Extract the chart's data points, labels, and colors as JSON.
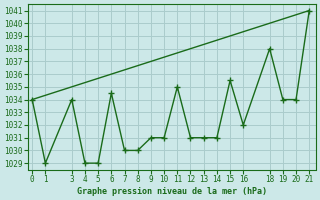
{
  "title": "Graphe pression niveau de la mer (hPa)",
  "bg_color": "#cce8e8",
  "grid_color": "#aacccc",
  "line_color": "#1a6b1a",
  "trend_color": "#1a6b1a",
  "xlim": [
    -0.3,
    21.5
  ],
  "ylim": [
    1028.5,
    1041.5
  ],
  "yticks": [
    1029,
    1030,
    1031,
    1032,
    1033,
    1034,
    1035,
    1036,
    1037,
    1038,
    1039,
    1040,
    1041
  ],
  "xticks": [
    0,
    1,
    3,
    4,
    5,
    6,
    7,
    8,
    9,
    10,
    11,
    12,
    13,
    14,
    15,
    16,
    18,
    19,
    20,
    21
  ],
  "data_x": [
    0,
    1,
    3,
    4,
    5,
    6,
    7,
    8,
    9,
    10,
    11,
    12,
    13,
    14,
    15,
    16,
    18,
    19,
    20,
    21
  ],
  "data_y": [
    1034,
    1029,
    1034,
    1029,
    1029,
    1034.5,
    1030,
    1030,
    1031,
    1031,
    1035,
    1031,
    1031,
    1031,
    1035.5,
    1032,
    1038,
    1034,
    1034,
    1041
  ],
  "trend_x": [
    0,
    21
  ],
  "trend_y": [
    1034,
    1041
  ]
}
